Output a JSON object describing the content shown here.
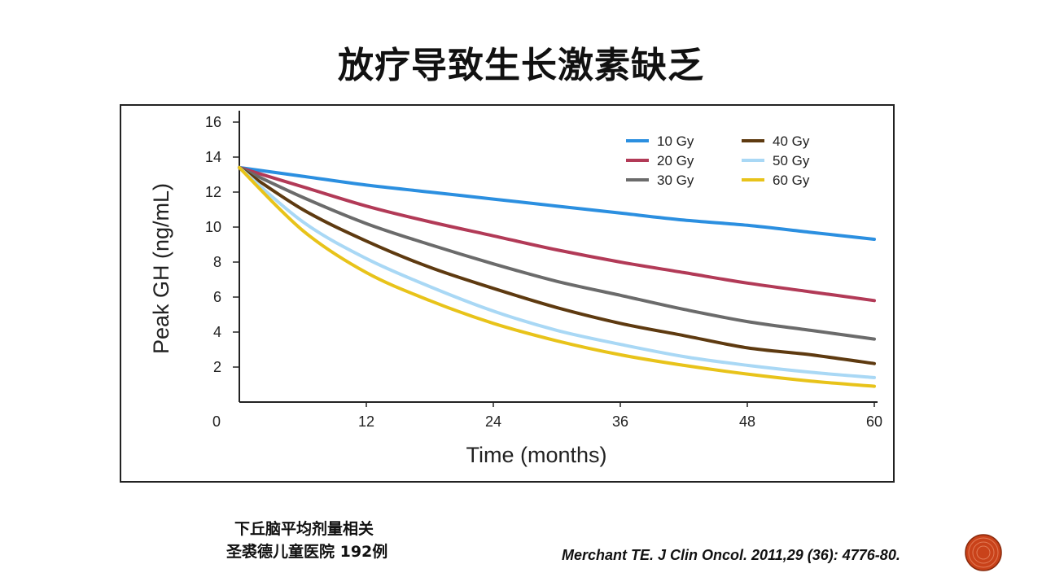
{
  "slide": {
    "title": "放疗导致生长激素缺乏",
    "note_line1": "下丘脑平均剂量相关",
    "note_line2": "圣裘德儿童医院 192例",
    "citation": "Merchant TE. J Clin Oncol. 2011,29 (36): 4776-80."
  },
  "chart_data": {
    "type": "line",
    "title": "",
    "xlabel": "Time (months)",
    "ylabel": "Peak GH (ng/mL)",
    "xlim": [
      0,
      60
    ],
    "ylim": [
      0,
      16
    ],
    "xticks": [
      0,
      12,
      24,
      36,
      48,
      60
    ],
    "yticks": [
      2,
      4,
      6,
      8,
      10,
      12,
      14,
      16
    ],
    "x_tick_labels": [
      "0",
      "12",
      "24",
      "36",
      "48",
      "60"
    ],
    "y_tick_labels": [
      "2",
      "4",
      "6",
      "8",
      "10",
      "12",
      "14",
      "16"
    ],
    "legend_position": "top-right",
    "grid": false,
    "x": [
      0,
      6,
      12,
      18,
      24,
      30,
      36,
      42,
      48,
      54,
      60
    ],
    "series": [
      {
        "name": "10 Gy",
        "color": "#2b8fe0",
        "values": [
          13.4,
          12.9,
          12.4,
          12.0,
          11.6,
          11.2,
          10.8,
          10.4,
          10.1,
          9.7,
          9.3
        ]
      },
      {
        "name": "20 Gy",
        "color": "#b23a57",
        "values": [
          13.4,
          12.3,
          11.2,
          10.3,
          9.5,
          8.7,
          8.0,
          7.4,
          6.8,
          6.3,
          5.8
        ]
      },
      {
        "name": "30 Gy",
        "color": "#6b6b6b",
        "values": [
          13.4,
          11.7,
          10.2,
          9.0,
          7.9,
          6.9,
          6.1,
          5.3,
          4.6,
          4.1,
          3.6
        ]
      },
      {
        "name": "40 Gy",
        "color": "#5e3a10",
        "values": [
          13.4,
          11.0,
          9.2,
          7.7,
          6.5,
          5.4,
          4.5,
          3.8,
          3.1,
          2.7,
          2.2
        ]
      },
      {
        "name": "50 Gy",
        "color": "#a9d8f5",
        "values": [
          13.4,
          10.3,
          8.2,
          6.6,
          5.2,
          4.1,
          3.3,
          2.6,
          2.1,
          1.7,
          1.4
        ]
      },
      {
        "name": "60 Gy",
        "color": "#e8c31a",
        "values": [
          13.4,
          9.8,
          7.4,
          5.8,
          4.5,
          3.5,
          2.7,
          2.1,
          1.6,
          1.2,
          0.9
        ]
      }
    ]
  }
}
